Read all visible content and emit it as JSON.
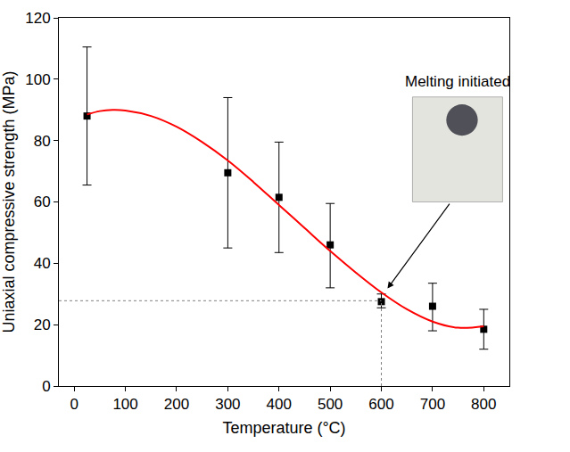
{
  "chart_data": {
    "type": "scatter",
    "x_label": "Temperature (°C)",
    "y_label": "Uniaxial compressive strength (MPa)",
    "xlim": [
      -30,
      850
    ],
    "ylim": [
      0,
      120
    ],
    "xticks": [
      0,
      100,
      200,
      300,
      400,
      500,
      600,
      700,
      800
    ],
    "yticks": [
      0,
      20,
      40,
      60,
      80,
      100,
      120
    ],
    "grid": false,
    "series": [
      {
        "type": "scatter",
        "marker": "square",
        "color": "#000000",
        "x": [
          25,
          300,
          400,
          500,
          600,
          700,
          800
        ],
        "values": [
          88,
          69.5,
          61.5,
          46,
          27.5,
          26,
          18.5
        ],
        "error_plus": [
          22.5,
          24.5,
          18,
          13.5,
          2.5,
          7.5,
          6.5
        ],
        "error_minus": [
          22.5,
          24.5,
          18,
          14,
          2,
          8,
          6.5
        ]
      },
      {
        "type": "line",
        "line_style": "solid",
        "color": "#ff0000",
        "x": [
          25,
          50,
          75,
          100,
          150,
          200,
          250,
          300,
          350,
          400,
          450,
          500,
          550,
          600,
          650,
          700,
          750,
          800
        ],
        "values": [
          88.5,
          89.6,
          90,
          89.8,
          88,
          84.5,
          79.5,
          73.5,
          66.5,
          59,
          51.5,
          44,
          37,
          30.5,
          25,
          21,
          19,
          19.5
        ]
      }
    ],
    "guide": {
      "x": 600,
      "y": 27.8,
      "line_style": "dot",
      "color": "#808080"
    },
    "annotations": [
      {
        "text": "Melting initiated"
      }
    ]
  }
}
